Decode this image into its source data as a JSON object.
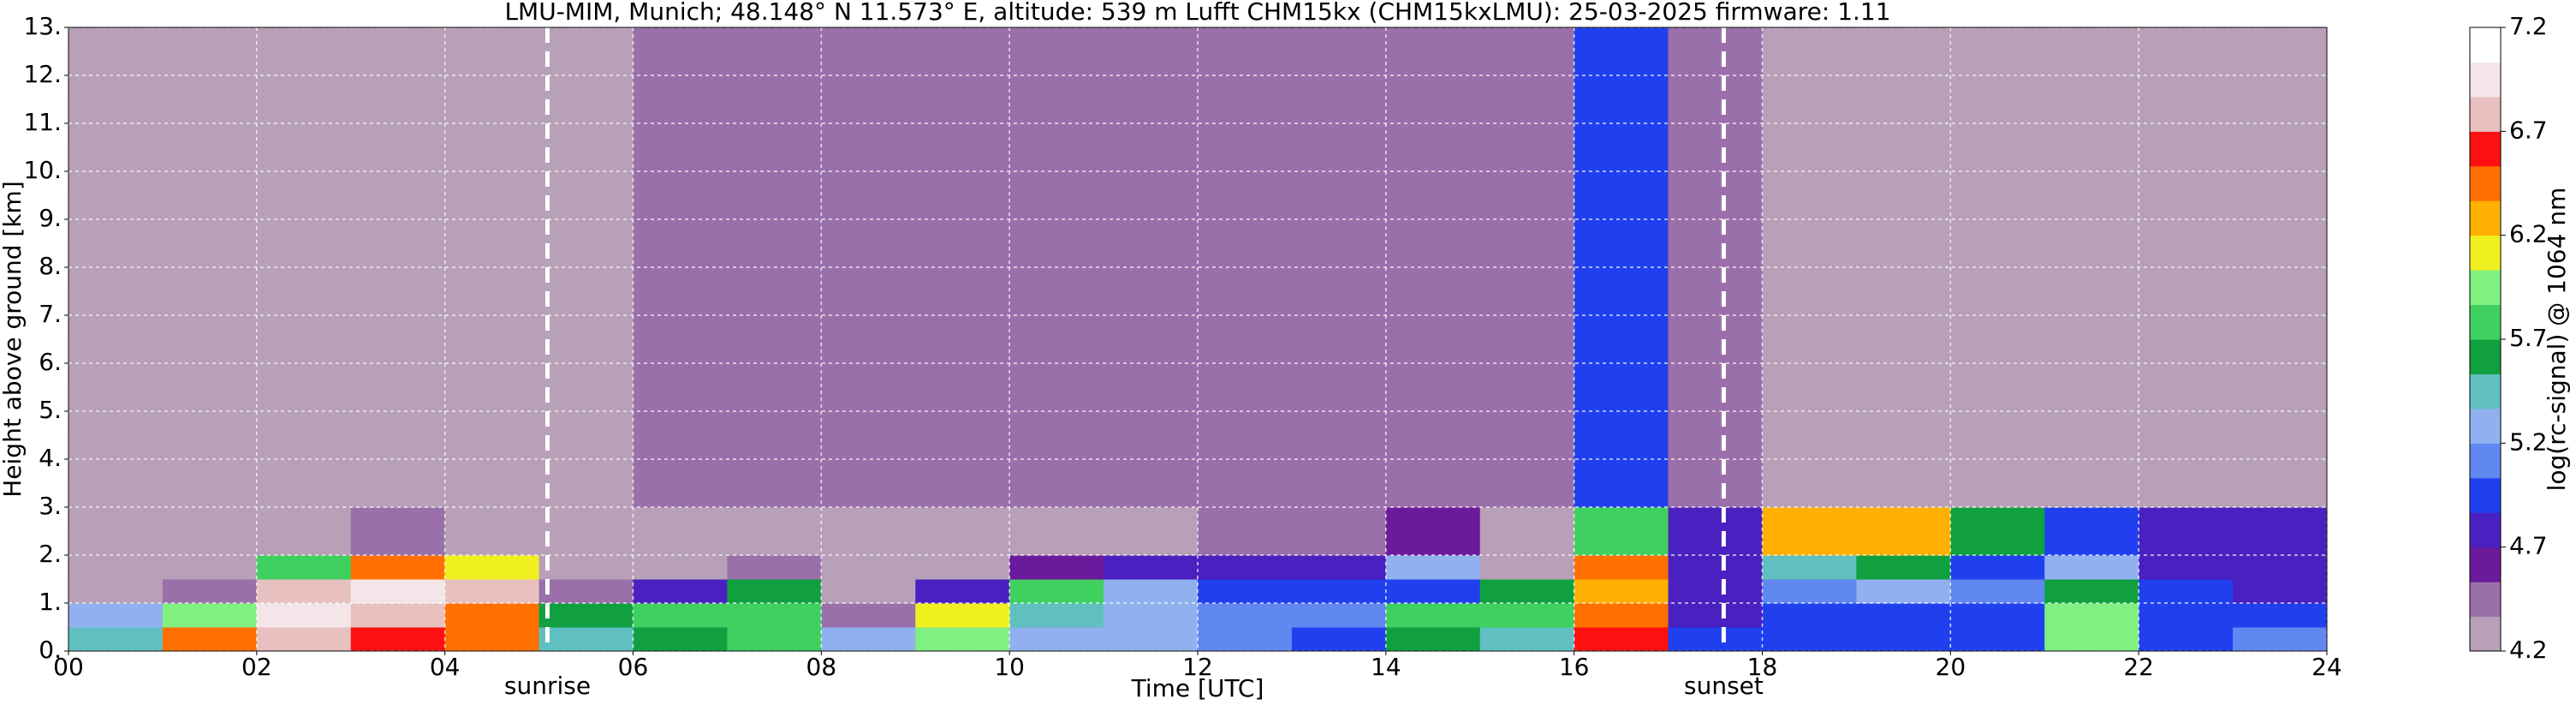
{
  "chart_data": {
    "type": "heatmap",
    "title": "LMU-MIM, Munich; 48.148° N 11.573° E, altitude: 539 m    Lufft CHM15kx (CHM15kxLMU): 25-03-2025    firmware: 1.11",
    "xlabel": "Time [UTC]",
    "ylabel": "Height above ground [km]",
    "colorbar_label": "log(rc-signal) @ 1064 nm",
    "xlim": [
      0,
      24
    ],
    "ylim": [
      0,
      13
    ],
    "xticks": [
      {
        "value": 0,
        "label": "00"
      },
      {
        "value": 2,
        "label": "02"
      },
      {
        "value": 4,
        "label": "04"
      },
      {
        "value": 6,
        "label": "06"
      },
      {
        "value": 8,
        "label": "08"
      },
      10,
      12,
      14,
      16,
      18,
      20,
      22,
      24
    ],
    "yticks": [
      {
        "value": 0,
        "label": "0."
      },
      {
        "value": 1,
        "label": "1."
      },
      {
        "value": 2,
        "label": "2."
      },
      {
        "value": 3,
        "label": "3."
      },
      {
        "value": 4,
        "label": "4."
      },
      {
        "value": 5,
        "label": "5."
      },
      {
        "value": 6,
        "label": "6."
      },
      {
        "value": 7,
        "label": "7."
      },
      {
        "value": 8,
        "label": "8."
      },
      {
        "value": 9,
        "label": "9."
      },
      {
        "value": 10,
        "label": "10."
      },
      {
        "value": 11,
        "label": "11."
      },
      {
        "value": 12,
        "label": "12."
      },
      {
        "value": 13,
        "label": "13."
      }
    ],
    "zlim": [
      4.2,
      7.2
    ],
    "zticks": [
      4.2,
      4.7,
      5.2,
      5.7,
      6.2,
      6.7,
      7.2
    ],
    "colorscale": [
      "#b8a0b8",
      "#9a70aa",
      "#6a1a9a",
      "#4a20c0",
      "#2040f0",
      "#6088f0",
      "#90b0f0",
      "#60c0c0",
      "#10a040",
      "#40d060",
      "#80f080",
      "#f0f020",
      "#ffb000",
      "#ff7000",
      "#ff1010",
      "#e8c0c0",
      "#f4e6e8",
      "#ffffff"
    ],
    "grid": true,
    "vlines": [
      {
        "x": 5.09,
        "label": "sunrise"
      },
      {
        "x": 17.59,
        "label": "sunset"
      }
    ],
    "xbins": [
      0,
      1,
      2,
      3,
      4,
      5,
      6,
      7,
      8,
      9,
      10,
      11,
      12,
      13,
      14,
      15,
      16,
      17,
      18,
      19,
      20,
      21,
      22,
      23,
      24
    ],
    "ybins": [
      0,
      0.5,
      1,
      1.5,
      2,
      3,
      13
    ],
    "z": [
      [
        5.5,
        6.4,
        6.8,
        6.6,
        6.5,
        5.4,
        5.6,
        5.7,
        5.2,
        6.0,
        5.3,
        5.2,
        5.1,
        5.0,
        5.6,
        5.5,
        6.6,
        4.9,
        5.0,
        4.9,
        4.9,
        6.0,
        5.0,
        5.1
      ],
      [
        5.3,
        6.0,
        6.9,
        6.7,
        6.5,
        5.6,
        5.8,
        5.8,
        4.4,
        6.1,
        5.4,
        5.2,
        5.1,
        5.1,
        5.8,
        5.7,
        6.4,
        4.8,
        4.9,
        5.0,
        5.0,
        6.0,
        4.9,
        4.9
      ],
      [
        4.3,
        4.4,
        6.8,
        6.9,
        6.8,
        4.5,
        4.7,
        5.6,
        4.3,
        4.8,
        5.7,
        5.2,
        5.0,
        5.0,
        4.9,
        5.6,
        6.3,
        4.8,
        5.1,
        5.3,
        5.1,
        5.6,
        4.9,
        4.8
      ],
      [
        4.3,
        4.3,
        5.8,
        6.5,
        6.1,
        4.3,
        4.3,
        4.4,
        4.3,
        4.3,
        4.6,
        4.7,
        4.8,
        4.7,
        5.2,
        4.3,
        6.5,
        4.8,
        5.5,
        5.6,
        5.0,
        5.2,
        4.8,
        4.7
      ],
      [
        4.3,
        4.2,
        4.3,
        4.4,
        4.3,
        4.3,
        4.3,
        4.3,
        4.3,
        4.3,
        4.3,
        4.3,
        4.4,
        4.4,
        4.6,
        4.3,
        5.8,
        4.7,
        6.2,
        6.3,
        5.6,
        5.0,
        4.8,
        4.7
      ],
      [
        4.3,
        4.3,
        4.3,
        4.3,
        4.3,
        4.3,
        4.4,
        4.4,
        4.5,
        4.5,
        4.5,
        4.5,
        4.5,
        4.5,
        4.5,
        4.5,
        5.0,
        4.4,
        4.3,
        4.3,
        4.3,
        4.3,
        4.3,
        4.3
      ]
    ]
  }
}
